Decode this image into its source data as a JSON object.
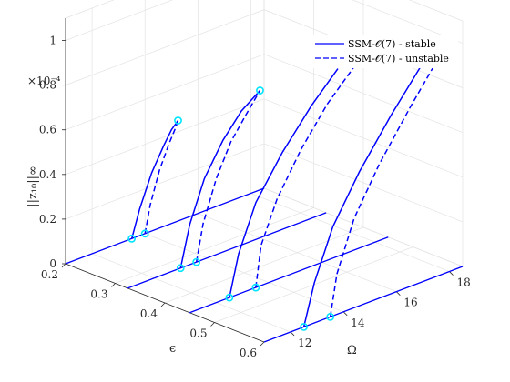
{
  "chart_data": {
    "type": "line3d",
    "title": "",
    "axes": {
      "x": {
        "label": "Ω",
        "ticks": [
          12,
          14,
          16,
          18
        ],
        "lim": [
          11,
          18.5
        ]
      },
      "y": {
        "label": "ϵ",
        "ticks": [
          0.2,
          0.3,
          0.4,
          0.5,
          0.6
        ],
        "lim": [
          0.2,
          0.6
        ]
      },
      "z": {
        "label": "||z₁₀||∞",
        "ticks": [
          0,
          0.2,
          0.4,
          0.6,
          0.8,
          1
        ],
        "lim": [
          0,
          1.1
        ],
        "exponent": "×10⁻⁴"
      }
    },
    "grid": true,
    "legend": {
      "position": "top-right",
      "entries": [
        {
          "label": "SSM-𝒪(7) - stable",
          "style": "solid",
          "color": "#0000ff"
        },
        {
          "label": "SSM-𝒪(7) - unstable",
          "style": "dashed",
          "color": "#0000ff"
        }
      ]
    },
    "slices": [
      {
        "eps": 0.6,
        "stable": {
          "omega": [
            12.5,
            12.9,
            13.6,
            14.6,
            15.8,
            17.0
          ],
          "z": [
            0.0,
            0.18,
            0.4,
            0.6,
            0.8,
            0.98
          ]
        },
        "unstable": {
          "omega": [
            13.5,
            13.75,
            14.4,
            15.35,
            16.5,
            17.5
          ],
          "z": [
            0.0,
            0.18,
            0.4,
            0.6,
            0.8,
            0.96
          ]
        },
        "bifurcation_points": [
          {
            "omega": 12.5,
            "z": 0.0
          },
          {
            "omega": 13.5,
            "z": 0.0
          }
        ]
      },
      {
        "eps": 0.45,
        "stable": {
          "omega": [
            12.5,
            12.85,
            13.5,
            14.5,
            15.6,
            16.6
          ],
          "z": [
            0.0,
            0.18,
            0.38,
            0.56,
            0.72,
            0.84
          ]
        },
        "unstable": {
          "omega": [
            13.5,
            13.7,
            14.3,
            15.2,
            16.2,
            17.2
          ],
          "z": [
            0.0,
            0.18,
            0.36,
            0.54,
            0.7,
            0.82
          ]
        },
        "bifurcation_points": [
          {
            "omega": 12.5,
            "z": 0.0
          },
          {
            "omega": 13.5,
            "z": 0.0
          }
        ]
      },
      {
        "eps": 0.325,
        "stable": {
          "omega": [
            13.0,
            13.35,
            13.9,
            14.6,
            15.3,
            16.0
          ],
          "z": [
            0.0,
            0.18,
            0.36,
            0.5,
            0.6,
            0.66
          ]
        },
        "unstable": {
          "omega": [
            13.6,
            13.85,
            14.35,
            14.9,
            15.5,
            16.0
          ],
          "z": [
            0.0,
            0.16,
            0.34,
            0.48,
            0.58,
            0.66
          ]
        },
        "bifurcation_points": [
          {
            "omega": 13.0,
            "z": 0.0
          },
          {
            "omega": 13.6,
            "z": 0.0
          },
          {
            "omega": 16.0,
            "z": 0.66
          }
        ]
      },
      {
        "eps": 0.2,
        "stable": {
          "omega": [
            13.5,
            13.8,
            14.25,
            14.7,
            15.0,
            15.25
          ],
          "z": [
            0.0,
            0.12,
            0.26,
            0.36,
            0.42,
            0.45
          ]
        },
        "unstable": {
          "omega": [
            14.0,
            14.2,
            14.55,
            14.9,
            15.15,
            15.25
          ],
          "z": [
            0.0,
            0.12,
            0.26,
            0.36,
            0.42,
            0.45
          ]
        },
        "bifurcation_points": [
          {
            "omega": 13.5,
            "z": 0.0
          },
          {
            "omega": 14.0,
            "z": 0.0
          },
          {
            "omega": 15.25,
            "z": 0.45
          }
        ]
      }
    ]
  }
}
